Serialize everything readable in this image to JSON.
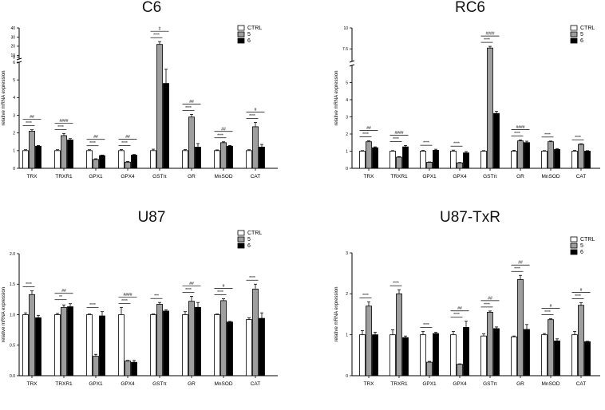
{
  "colors": {
    "ctrl": "#ffffff",
    "s5": "#9e9e9e",
    "s6": "#000000",
    "stroke": "#000000"
  },
  "chart_data": [
    {
      "type": "bar",
      "title": "C6",
      "ylabel": "relative mRNA expression",
      "categories": [
        "TRX",
        "TRXR1",
        "GPX1",
        "GPX4",
        "GSTπ",
        "GR",
        "MnSOD",
        "CAT"
      ],
      "series": [
        {
          "name": "CTRL",
          "values": [
            1.0,
            1.0,
            1.0,
            1.0,
            1.0,
            1.0,
            1.0,
            1.0
          ],
          "errors": [
            0.05,
            0.05,
            0.05,
            0.06,
            0.08,
            0.06,
            0.04,
            0.05
          ]
        },
        {
          "name": "5",
          "values": [
            2.1,
            1.85,
            0.5,
            0.35,
            22.0,
            2.9,
            1.45,
            2.35
          ],
          "errors": [
            0.08,
            0.12,
            0.04,
            0.04,
            3.0,
            0.15,
            0.05,
            0.25
          ]
        },
        {
          "name": "6",
          "values": [
            1.25,
            1.6,
            0.72,
            0.75,
            4.8,
            1.2,
            1.25,
            1.2
          ],
          "errors": [
            0.04,
            0.08,
            0.03,
            0.03,
            0.8,
            0.2,
            0.04,
            0.15
          ]
        }
      ],
      "axis": {
        "type": "broken",
        "lower": [
          0,
          6
        ],
        "upper": [
          6,
          40
        ],
        "lower_ticks": [
          0,
          1,
          2,
          3,
          4,
          5
        ],
        "upper_ticks": [
          6,
          8,
          10,
          20,
          30,
          40
        ]
      },
      "significance": [
        {
          "category": 0,
          "stars": "****",
          "hash": "##"
        },
        {
          "category": 1,
          "stars": "****",
          "hash": "####"
        },
        {
          "category": 2,
          "stars": "****",
          "hash": "##"
        },
        {
          "category": 3,
          "stars": "****",
          "hash": "##"
        },
        {
          "category": 4,
          "stars": "****",
          "hash": "#"
        },
        {
          "category": 5,
          "stars": "****",
          "hash": "##"
        },
        {
          "category": 6,
          "stars": "****",
          "hash": "##"
        },
        {
          "category": 7,
          "stars": "****",
          "hash": "#"
        }
      ]
    },
    {
      "type": "bar",
      "title": "RC6",
      "ylabel": "relative mRNA expression",
      "categories": [
        "TRX",
        "TRXR1",
        "GPX1",
        "GPX4",
        "GSTπ",
        "GR",
        "MnSOD",
        "CAT"
      ],
      "series": [
        {
          "name": "CTRL",
          "values": [
            1.0,
            1.0,
            1.0,
            1.0,
            1.0,
            1.0,
            1.0,
            1.0
          ],
          "errors": [
            0.03,
            0.03,
            0.04,
            0.06,
            0.03,
            0.05,
            0.03,
            0.04
          ]
        },
        {
          "name": "5",
          "values": [
            1.55,
            0.65,
            0.35,
            0.32,
            7.6,
            1.6,
            1.55,
            1.4
          ],
          "errors": [
            0.05,
            0.03,
            0.02,
            0.02,
            0.2,
            0.05,
            0.04,
            0.03
          ]
        },
        {
          "name": "6",
          "values": [
            1.2,
            1.25,
            1.05,
            0.9,
            3.2,
            1.5,
            1.1,
            1.0
          ],
          "errors": [
            0.05,
            0.08,
            0.06,
            0.08,
            0.12,
            0.08,
            0.05,
            0.03
          ]
        }
      ],
      "axis": {
        "type": "broken",
        "lower": [
          0,
          6
        ],
        "upper": [
          6,
          10
        ],
        "lower_ticks": [
          0,
          1,
          2,
          3,
          4,
          5
        ],
        "upper_ticks": [
          7.5,
          10
        ]
      },
      "significance": [
        {
          "category": 0,
          "stars": "****",
          "hash": "##"
        },
        {
          "category": 1,
          "stars": "****",
          "hash": "####"
        },
        {
          "category": 2,
          "stars": "****",
          "hash": ""
        },
        {
          "category": 3,
          "stars": "****",
          "hash": ""
        },
        {
          "category": 4,
          "stars": "****",
          "hash": "####"
        },
        {
          "category": 5,
          "stars": "****",
          "hash": "####"
        },
        {
          "category": 6,
          "stars": "****",
          "hash": ""
        },
        {
          "category": 7,
          "stars": "****",
          "hash": ""
        }
      ]
    },
    {
      "type": "bar",
      "title": "U87",
      "ylabel": "relative mRNA expression",
      "categories": [
        "TRX",
        "TRXR1",
        "GPX1",
        "GPX4",
        "GSTπ",
        "GR",
        "MnSOD",
        "CAT"
      ],
      "series": [
        {
          "name": "CTRL",
          "values": [
            1.0,
            1.0,
            1.0,
            1.0,
            1.0,
            1.0,
            1.0,
            0.92
          ],
          "errors": [
            0.03,
            0.02,
            0.01,
            0.12,
            0.01,
            0.05,
            0.01,
            0.03
          ]
        },
        {
          "name": "5",
          "values": [
            1.33,
            1.12,
            0.32,
            0.24,
            1.17,
            1.22,
            1.23,
            1.42
          ],
          "errors": [
            0.06,
            0.04,
            0.03,
            0.01,
            0.03,
            0.08,
            0.03,
            0.08
          ]
        },
        {
          "name": "6",
          "values": [
            0.95,
            1.13,
            0.98,
            0.22,
            1.06,
            1.12,
            0.88,
            0.94
          ],
          "errors": [
            0.04,
            0.05,
            0.07,
            0.03,
            0.02,
            0.08,
            0.01,
            0.09
          ]
        }
      ],
      "axis": {
        "type": "linear",
        "range": [
          0,
          2.0
        ],
        "ticks": [
          0.0,
          0.5,
          1.0,
          1.5,
          2.0
        ]
      },
      "significance": [
        {
          "category": 0,
          "stars": "****",
          "hash": ""
        },
        {
          "category": 1,
          "stars": "**",
          "hash": "##"
        },
        {
          "category": 2,
          "stars": "****",
          "hash": ""
        },
        {
          "category": 3,
          "stars": "****",
          "hash": "####"
        },
        {
          "category": 4,
          "stars": "***",
          "hash": ""
        },
        {
          "category": 5,
          "stars": "****",
          "hash": "##"
        },
        {
          "category": 6,
          "stars": "****",
          "hash": "#"
        },
        {
          "category": 7,
          "stars": "****",
          "hash": ""
        }
      ]
    },
    {
      "type": "bar",
      "title": "U87-TxR",
      "ylabel": "relative mRNA expression",
      "categories": [
        "TRX",
        "TRXR1",
        "GPX1",
        "GPX4",
        "GSTπ",
        "GR",
        "MnSOD",
        "CAT"
      ],
      "series": [
        {
          "name": "CTRL",
          "values": [
            1.0,
            1.0,
            1.0,
            1.0,
            0.97,
            0.95,
            1.0,
            1.0
          ],
          "errors": [
            0.1,
            0.12,
            0.08,
            0.08,
            0.05,
            0.02,
            0.03,
            0.08
          ]
        },
        {
          "name": "5",
          "values": [
            1.7,
            2.0,
            0.33,
            0.28,
            1.55,
            2.35,
            1.37,
            1.72
          ],
          "errors": [
            0.1,
            0.1,
            0.02,
            0.01,
            0.03,
            0.1,
            0.02,
            0.06
          ]
        },
        {
          "name": "6",
          "values": [
            1.0,
            0.93,
            1.03,
            1.18,
            1.15,
            1.13,
            0.85,
            0.83
          ],
          "errors": [
            0.06,
            0.04,
            0.03,
            0.15,
            0.04,
            0.12,
            0.05,
            0.01
          ]
        }
      ],
      "axis": {
        "type": "linear",
        "range": [
          0,
          3
        ],
        "ticks": [
          0,
          1,
          2,
          3
        ]
      },
      "significance": [
        {
          "category": 0,
          "stars": "****",
          "hash": ""
        },
        {
          "category": 1,
          "stars": "****",
          "hash": ""
        },
        {
          "category": 2,
          "stars": "****",
          "hash": ""
        },
        {
          "category": 3,
          "stars": "****",
          "hash": "##"
        },
        {
          "category": 4,
          "stars": "****",
          "hash": "##"
        },
        {
          "category": 5,
          "stars": "****",
          "hash": "##"
        },
        {
          "category": 6,
          "stars": "****",
          "hash": "#"
        },
        {
          "category": 7,
          "stars": "****",
          "hash": "#"
        }
      ]
    }
  ]
}
